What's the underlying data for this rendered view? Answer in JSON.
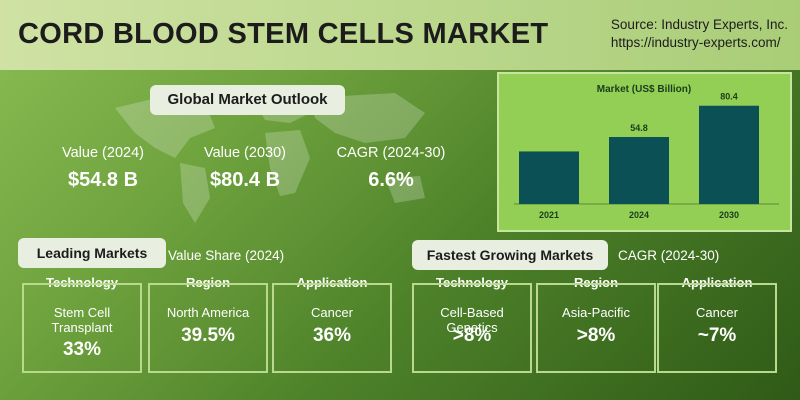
{
  "header": {
    "title": "CORD BLOOD STEM CELLS MARKET",
    "source_line1": "Source: Industry Experts, Inc.",
    "source_line2": "https://industry-experts.com/"
  },
  "outlook": {
    "pill": "Global Market Outlook",
    "metrics": [
      {
        "label": "Value (2024)",
        "value": "$54.8 B"
      },
      {
        "label": "Value (2030)",
        "value": "$80.4 B"
      },
      {
        "label": "CAGR (2024-30)",
        "value": "6.6%"
      }
    ]
  },
  "chart_data": {
    "type": "bar",
    "title": "Market (US$ Billion)",
    "categories": [
      "2021",
      "2024",
      "2030"
    ],
    "values": [
      43,
      54.8,
      80.4
    ],
    "data_labels": [
      "",
      "54.8",
      "80.4"
    ],
    "ylim": [
      0,
      90
    ],
    "bar_color": "#0b5055",
    "grid": false
  },
  "leading": {
    "pill": "Leading Markets",
    "subtitle": "Value Share (2024)",
    "boxes": [
      {
        "caption": "Technology",
        "label": "Stem Cell\nTransplant",
        "value": "33%"
      },
      {
        "caption": "Region",
        "label": "North America",
        "value": "39.5%"
      },
      {
        "caption": "Application",
        "label": "Cancer",
        "value": "36%"
      }
    ]
  },
  "fastest": {
    "pill": "Fastest Growing Markets",
    "subtitle": "CAGR (2024-30)",
    "boxes": [
      {
        "caption": "Technology",
        "label": "Cell-Based Genetics",
        "value": ">8%"
      },
      {
        "caption": "Region",
        "label": "Asia-Pacific",
        "value": ">8%"
      },
      {
        "caption": "Application",
        "label": "Cancer",
        "value": "~7%"
      }
    ]
  },
  "colors": {
    "header_bg": "#c3dc98",
    "chart_bg": "#94cf55",
    "bar": "#0b5055",
    "pill_bg": "#e9efe0"
  }
}
